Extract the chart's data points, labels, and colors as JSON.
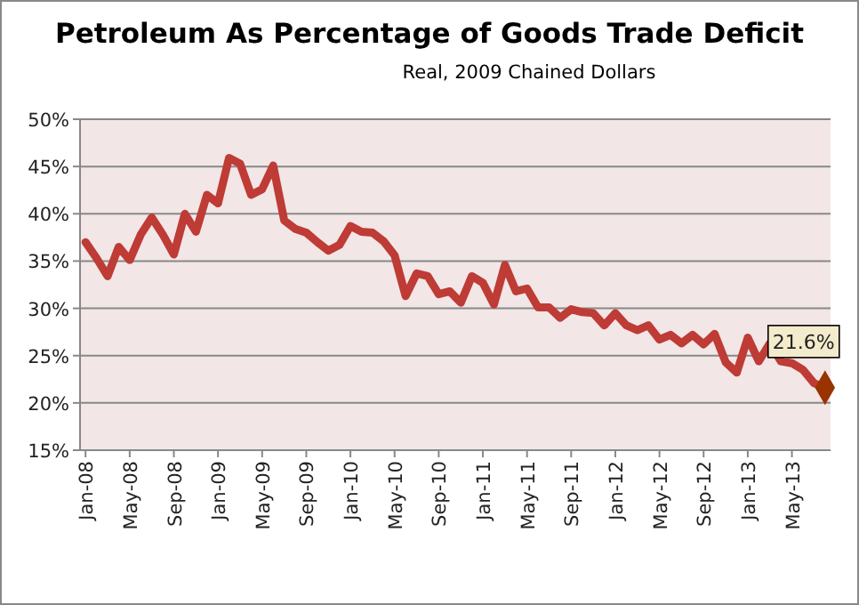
{
  "chart_data": {
    "type": "line",
    "title": "Petroleum As Percentage of Goods Trade Deficit",
    "subtitle": "Real, 2009 Chained Dollars",
    "categories": [
      "Jan-08",
      null,
      null,
      null,
      "May-08",
      null,
      null,
      null,
      "Sep-08",
      null,
      null,
      null,
      "Jan-09",
      null,
      null,
      null,
      "May-09",
      null,
      null,
      null,
      "Sep-09",
      null,
      null,
      null,
      "Jan-10",
      null,
      null,
      null,
      "May-10",
      null,
      null,
      null,
      "Sep-10",
      null,
      null,
      null,
      "Jan-11",
      null,
      null,
      null,
      "May-11",
      null,
      null,
      null,
      "Sep-11",
      null,
      null,
      null,
      "Jan-12",
      null,
      null,
      null,
      "May-12",
      null,
      null,
      null,
      "Sep-12",
      null,
      null,
      null,
      "Jan-13",
      null,
      null,
      null,
      "May-13",
      null,
      null,
      null
    ],
    "series": [
      {
        "color": "#be3b36",
        "marker": "none",
        "values": [
          37.0,
          35.3,
          33.4,
          36.5,
          35.1,
          37.8,
          39.6,
          37.8,
          35.7,
          40.0,
          38.1,
          42.0,
          41.1,
          45.9,
          45.3,
          42.0,
          42.6,
          45.1,
          39.3,
          38.4,
          38.0,
          37.0,
          36.1,
          36.7,
          38.7,
          38.1,
          38.0,
          37.1,
          35.6,
          31.3,
          33.7,
          33.4,
          31.5,
          31.8,
          30.6,
          33.4,
          32.7,
          30.4,
          34.6,
          31.8,
          32.1,
          30.1,
          30.1,
          29.0,
          29.9,
          29.6,
          29.5,
          28.2,
          29.5,
          28.2,
          27.7,
          28.2,
          26.7,
          27.2,
          26.3,
          27.2,
          26.2,
          27.3,
          24.3,
          23.2,
          26.9,
          24.4,
          26.3,
          24.4,
          24.2,
          23.5,
          22.1,
          21.6
        ]
      },
      {
        "type": "scatter",
        "color": "#993300",
        "marker": "diamond",
        "values": [
          null,
          null,
          null,
          null,
          null,
          null,
          null,
          null,
          null,
          null,
          null,
          null,
          null,
          null,
          null,
          null,
          null,
          null,
          null,
          null,
          null,
          null,
          null,
          null,
          null,
          null,
          null,
          null,
          null,
          null,
          null,
          null,
          null,
          null,
          null,
          null,
          null,
          null,
          null,
          null,
          null,
          null,
          null,
          null,
          null,
          null,
          null,
          null,
          null,
          null,
          null,
          null,
          null,
          null,
          null,
          null,
          null,
          null,
          null,
          null,
          null,
          null,
          null,
          null,
          null,
          null,
          null,
          21.6
        ],
        "value_labels": [
          null,
          null,
          null,
          null,
          null,
          null,
          null,
          null,
          null,
          null,
          null,
          null,
          null,
          null,
          null,
          null,
          null,
          null,
          null,
          null,
          null,
          null,
          null,
          null,
          null,
          null,
          null,
          null,
          null,
          null,
          null,
          null,
          null,
          null,
          null,
          null,
          null,
          null,
          null,
          null,
          null,
          null,
          null,
          null,
          null,
          null,
          null,
          null,
          null,
          null,
          null,
          null,
          null,
          null,
          null,
          null,
          null,
          null,
          null,
          null,
          null,
          null,
          null,
          null,
          null,
          null,
          null,
          "21.6%"
        ]
      }
    ],
    "ylim": [
      15,
      50
    ],
    "yticks": [
      {
        "value": 15,
        "label": "15%"
      },
      {
        "value": 20,
        "label": "20%"
      },
      {
        "value": 25,
        "label": "25%"
      },
      {
        "value": 30,
        "label": "30%"
      },
      {
        "value": 35,
        "label": "35%"
      },
      {
        "value": 40,
        "label": "40%"
      },
      {
        "value": 45,
        "label": "45%"
      },
      {
        "value": 50,
        "label": "50%"
      }
    ],
    "grid": "y"
  }
}
